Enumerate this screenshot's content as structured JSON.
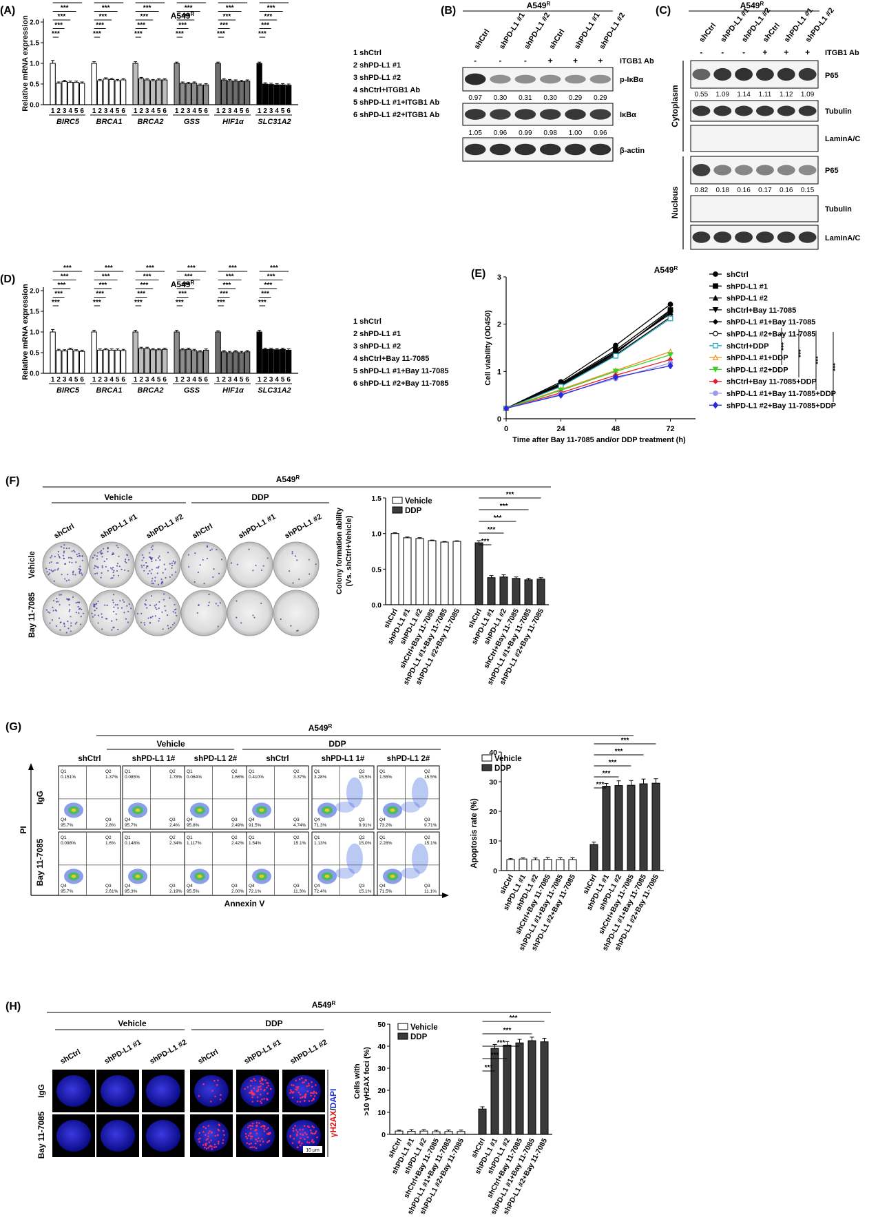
{
  "panels": [
    "(A)",
    "(B)",
    "(C)",
    "(D)",
    "(E)",
    "(F)",
    "(G)",
    "(H)"
  ],
  "cell_line": "A549R",
  "cell_line_base": "A549",
  "cell_line_sup": "R",
  "sig": "***",
  "mrna_genes": [
    "BIRC5",
    "BRCA1",
    "BRCA2",
    "GSS",
    "HIF1α",
    "SLC31A2"
  ],
  "mrna_bar_ticks": [
    "1",
    "2",
    "3",
    "4",
    "5",
    "6"
  ],
  "panel_a": {
    "ylabel": "Relative mRNA expression",
    "yticks": [
      "0.0",
      "0.5",
      "1.0",
      "1.5",
      "2.0"
    ],
    "legend": [
      "1 shCtrl",
      "2 shPD-L1 #1",
      "3 shPD-L1 #2",
      "4 shCtrl+ITGB1 Ab",
      "5 shPD-L1 #1+ITGB1 Ab",
      "6 shPD-L1 #2+ITGB1 Ab"
    ],
    "group_colors": [
      "#ffffff",
      "#ffffff",
      "#bdbdbd",
      "#8c8c8c",
      "#6e6e6e",
      "#000000"
    ]
  },
  "panel_b": {
    "lanes": [
      "shCtrl",
      "shPD-L1 #1",
      "shPD-L1 #2",
      "shCtrl",
      "shPD-L1 #1",
      "shPD-L1 #2"
    ],
    "treat_label": "ITGB1 Ab",
    "treat_signs": [
      "-",
      "-",
      "-",
      "+",
      "+",
      "+"
    ],
    "blots": [
      "p-IκBα",
      "IκBα",
      "β-actin"
    ],
    "quant_p_ikba": [
      "0.97",
      "0.30",
      "0.31",
      "0.30",
      "0.29",
      "0.29"
    ],
    "quant_ikba": [
      "1.05",
      "0.96",
      "0.99",
      "0.98",
      "1.00",
      "0.96"
    ]
  },
  "panel_c": {
    "lanes": [
      "shCtrl",
      "shPD-L1 #1",
      "shPD-L1 #2",
      "shCtrl",
      "shPD-L1 #1",
      "shPD-L1 #2"
    ],
    "treat_label": "ITGB1 Ab",
    "treat_signs": [
      "-",
      "-",
      "-",
      "+",
      "+",
      "+"
    ],
    "sections": [
      "Cytoplasm",
      "Nucleus"
    ],
    "blots": [
      "P65",
      "Tubulin",
      "LaminA/C",
      "P65",
      "Tubulin",
      "LaminA/C"
    ],
    "quant_cyto_p65": [
      "0.55",
      "1.09",
      "1.14",
      "1.11",
      "1.12",
      "1.09"
    ],
    "quant_nuc_p65": [
      "0.82",
      "0.18",
      "0.16",
      "0.17",
      "0.16",
      "0.15"
    ]
  },
  "panel_d": {
    "ylabel": "Relative mRNA expression",
    "yticks": [
      "0.0",
      "0.5",
      "1.0",
      "1.5",
      "2.0"
    ],
    "legend": [
      "1 shCtrl",
      "2 shPD-L1 #1",
      "3 shPD-L1 #2",
      "4 shCtrl+Bay 11-7085",
      "5 shPD-L1 #1+Bay 11-7085",
      "6 shPD-L1 #2+Bay 11-7085"
    ]
  },
  "panel_e": {
    "ylabel": "Cell viability (OD450)",
    "xlabel": "Time after Bay 11-7085 and/or DDP treatment (h)",
    "xticks": [
      "0",
      "24",
      "48",
      "72"
    ],
    "yticks": [
      "0",
      "1",
      "2",
      "3"
    ],
    "legend": [
      "shCtrl",
      "shPD-L1 #1",
      "shPD-L1 #2",
      "shCtrl+Bay 11-7085",
      "shPD-L1 #1+Bay 11-7085",
      "shPD-L1 #2+Bay 11-7085",
      "shCtrl+DDP",
      "shPD-L1 #1+DDP",
      "shPD-L1 #2+DDP",
      "shCtrl+Bay 11-7085+DDP",
      "shPD-L1 #1+Bay 11-7085+DDP",
      "shPD-L1 #2+Bay 11-7085+DDP"
    ],
    "colors": [
      "#000000",
      "#000000",
      "#000000",
      "#000000",
      "#000000",
      "#000000",
      "#1aa3b5",
      "#f0901c",
      "#3ecf28",
      "#e8202a",
      "#9a9ae8",
      "#2a2ad8"
    ],
    "markers": [
      "circle",
      "square",
      "triangle",
      "invtriangle",
      "diamond",
      "opencircle",
      "opensquare",
      "opentriangle",
      "invtriangle",
      "diamond",
      "circle",
      "star"
    ]
  },
  "panel_f": {
    "groups": [
      "Vehicle",
      "DDP"
    ],
    "columns": [
      "shCtrl",
      "shPD-L1 #1",
      "shPD-L1 #2",
      "shCtrl",
      "shPD-L1 #1",
      "shPD-L1 #2"
    ],
    "rows": [
      "Vehicle",
      "Bay 11-7085"
    ],
    "ylabel1": "Colony formation ability",
    "ylabel2": "(Vs. shCtrl+Vehicle)",
    "yticks": [
      "0.0",
      "0.5",
      "1.0",
      "1.5"
    ],
    "legend": [
      "Vehicle",
      "DDP"
    ]
  },
  "panel_g": {
    "groups": [
      "Vehicle",
      "DDP"
    ],
    "columns": [
      "shCtrl",
      "shPD-L1 1#",
      "shPD-L1 2#",
      "shCtrl",
      "shPD-L1 1#",
      "shPD-L1 2#"
    ],
    "rows": [
      "IgG",
      "Bay 11-7085"
    ],
    "axis_y": "PI",
    "axis_x": "Annexin V",
    "quads": [
      [
        "0.151%",
        "1.37%",
        "95.7%",
        "2.8%"
      ],
      [
        "0.085%",
        "1.78%",
        "95.7%",
        "2.4%"
      ],
      [
        "0.064%",
        "1.66%",
        "95.8%",
        "2.49%"
      ],
      [
        "0.410%",
        "3.37%",
        "91.5%",
        "4.74%"
      ],
      [
        "3.28%",
        "15.5%",
        "71.3%",
        "9.91%"
      ],
      [
        "1.55%",
        "15.5%",
        "73.2%",
        "9.71%"
      ],
      [
        "0.098%",
        "1.6%",
        "95.7%",
        "2.61%"
      ],
      [
        "0.148%",
        "2.34%",
        "95.3%",
        "2.19%"
      ],
      [
        "1.117%",
        "2.42%",
        "95.5%",
        "2.00%"
      ],
      [
        "1.54%",
        "15.1%",
        "72.1%",
        "11.3%"
      ],
      [
        "1.13%",
        "15.0%",
        "72.4%",
        "15.1%"
      ],
      [
        "2.28%",
        "15.1%",
        "71.5%",
        "11.1%"
      ]
    ],
    "ylabel": "Apoptosis rate (%)",
    "yticks": [
      "0",
      "10",
      "20",
      "30",
      "40"
    ],
    "legend": [
      "Vehicle",
      "DDP"
    ]
  },
  "panel_h": {
    "groups": [
      "Vehicle",
      "DDP"
    ],
    "columns": [
      "shCtrl",
      "shPD-L1 #1",
      "shPD-L1 #2",
      "shCtrl",
      "shPD-L1 #1",
      "shPD-L1 #2"
    ],
    "rows": [
      "IgG",
      "Bay 11-7085"
    ],
    "stain_red": "γH2AX",
    "stain_sep": "/",
    "stain_blue": "DAPI",
    "scale": "10 μm",
    "ylabel1": "Cells with",
    "ylabel2": ">10 γH2AX foci (%)",
    "yticks": [
      "0",
      "10",
      "20",
      "30",
      "40",
      "50"
    ],
    "legend": [
      "Vehicle",
      "DDP"
    ]
  },
  "bar_group_labels": [
    "shCtrl",
    "shPD-L1 #1",
    "shPD-L1 #2",
    "shCtrl+Bay 11-7085",
    "shPD-L1 #1+Bay 11-7085",
    "shPD-L1 #2+Bay 11-7085"
  ],
  "chart_data": [
    {
      "type": "bar",
      "panel": "(A)",
      "categories": [
        "BIRC5",
        "BRCA1",
        "BRCA2",
        "GSS",
        "HIF1α",
        "SLC31A2"
      ],
      "series": [
        {
          "name": "1 shCtrl",
          "values": [
            1.0,
            1.0,
            1.0,
            1.0,
            1.0,
            1.0
          ]
        },
        {
          "name": "2 shPD-L1 #1",
          "values": [
            0.52,
            0.58,
            0.63,
            0.52,
            0.6,
            0.5
          ]
        },
        {
          "name": "3 shPD-L1 #2",
          "values": [
            0.56,
            0.62,
            0.6,
            0.51,
            0.58,
            0.49
          ]
        },
        {
          "name": "4 shCtrl+ITGB1 Ab",
          "values": [
            0.54,
            0.61,
            0.58,
            0.52,
            0.57,
            0.48
          ]
        },
        {
          "name": "5 shPD-L1 #1+ITGB1 Ab",
          "values": [
            0.54,
            0.58,
            0.6,
            0.47,
            0.56,
            0.48
          ]
        },
        {
          "name": "6 shPD-L1 #2+ITGB1 Ab",
          "values": [
            0.52,
            0.6,
            0.6,
            0.48,
            0.57,
            0.47
          ]
        }
      ],
      "errors": [
        0.07,
        0.04,
        0.04,
        0.03,
        0.03,
        0.03
      ],
      "ylabel": "Relative mRNA expression",
      "ylim": [
        0,
        2
      ]
    },
    {
      "type": "bar",
      "panel": "(D)",
      "categories": [
        "BIRC5",
        "BRCA1",
        "BRCA2",
        "GSS",
        "HIF1α",
        "SLC31A2"
      ],
      "series": [
        {
          "name": "1 shCtrl",
          "values": [
            1.0,
            1.0,
            1.0,
            1.0,
            1.0,
            1.0
          ]
        },
        {
          "name": "2 shPD-L1 #1",
          "values": [
            0.55,
            0.56,
            0.6,
            0.57,
            0.52,
            0.58
          ]
        },
        {
          "name": "3 shPD-L1 #2",
          "values": [
            0.54,
            0.57,
            0.6,
            0.58,
            0.5,
            0.58
          ]
        },
        {
          "name": "4 shCtrl+Bay 11-7085",
          "values": [
            0.58,
            0.56,
            0.57,
            0.55,
            0.52,
            0.57
          ]
        },
        {
          "name": "5 shPD-L1 #1+Bay 11-7085",
          "values": [
            0.54,
            0.56,
            0.57,
            0.52,
            0.5,
            0.58
          ]
        },
        {
          "name": "6 shPD-L1 #2+Bay 11-7085",
          "values": [
            0.53,
            0.55,
            0.58,
            0.56,
            0.52,
            0.56
          ]
        }
      ],
      "errors": [
        0.06,
        0.04,
        0.04,
        0.04,
        0.03,
        0.04
      ],
      "ylabel": "Relative mRNA expression",
      "ylim": [
        0,
        2
      ]
    },
    {
      "type": "line",
      "panel": "(E)",
      "x": [
        0,
        24,
        48,
        72
      ],
      "series": [
        {
          "name": "shCtrl",
          "values": [
            0.22,
            0.78,
            1.55,
            2.42
          ]
        },
        {
          "name": "shPD-L1 #1",
          "values": [
            0.22,
            0.75,
            1.45,
            2.3
          ]
        },
        {
          "name": "shPD-L1 #2",
          "values": [
            0.22,
            0.72,
            1.4,
            2.25
          ]
        },
        {
          "name": "shCtrl+Bay 11-7085",
          "values": [
            0.22,
            0.73,
            1.42,
            2.22
          ]
        },
        {
          "name": "shPD-L1 #1+Bay 11-7085",
          "values": [
            0.22,
            0.7,
            1.38,
            2.28
          ]
        },
        {
          "name": "shPD-L1 #2+Bay 11-7085",
          "values": [
            0.22,
            0.7,
            1.35,
            2.15
          ]
        },
        {
          "name": "shCtrl+DDP",
          "values": [
            0.22,
            0.68,
            1.33,
            2.12
          ]
        },
        {
          "name": "shPD-L1 #1+DDP",
          "values": [
            0.22,
            0.62,
            1.02,
            1.42
          ]
        },
        {
          "name": "shPD-L1 #2+DDP",
          "values": [
            0.22,
            0.6,
            1.0,
            1.35
          ]
        },
        {
          "name": "shCtrl+Bay 11-7085+DDP",
          "values": [
            0.22,
            0.55,
            0.92,
            1.25
          ]
        },
        {
          "name": "shPD-L1 #1+Bay 11-7085+DDP",
          "values": [
            0.22,
            0.52,
            0.85,
            1.18
          ]
        },
        {
          "name": "shPD-L1 #2+Bay 11-7085+DDP",
          "values": [
            0.22,
            0.5,
            0.88,
            1.12
          ]
        }
      ],
      "xlabel": "Time after Bay 11-7085 and/or DDP treatment (h)",
      "ylabel": "Cell viability (OD450)",
      "xlim": [
        0,
        80
      ],
      "ylim": [
        0,
        3
      ]
    },
    {
      "type": "bar",
      "panel": "(F)",
      "categories": [
        "shCtrl",
        "shPD-L1 #1",
        "shPD-L1 #2",
        "shCtrl+Bay 11-7085",
        "shPD-L1 #1+Bay 11-7085",
        "shPD-L1 #2+Bay 11-7085"
      ],
      "series": [
        {
          "name": "Vehicle",
          "values": [
            1.0,
            0.94,
            0.93,
            0.9,
            0.88,
            0.89
          ]
        },
        {
          "name": "DDP",
          "values": [
            0.87,
            0.38,
            0.39,
            0.37,
            0.35,
            0.36
          ]
        }
      ],
      "errors": [
        0.03,
        0.03,
        0.03,
        0.02,
        0.02,
        0.02
      ],
      "ylabel": "Colony formation ability (Vs. shCtrl+Vehicle)",
      "ylim": [
        0,
        1.5
      ]
    },
    {
      "type": "bar",
      "panel": "(G)",
      "categories": [
        "shCtrl",
        "shPD-L1 #1",
        "shPD-L1 #2",
        "shCtrl+Bay 11-7085",
        "shPD-L1 #1+Bay 11-7085",
        "shPD-L1 #2+Bay 11-7085"
      ],
      "series": [
        {
          "name": "Vehicle",
          "values": [
            3.7,
            3.9,
            3.6,
            3.8,
            3.7,
            3.7
          ]
        },
        {
          "name": "DDP",
          "values": [
            8.8,
            28.5,
            28.7,
            28.8,
            29.3,
            29.5
          ]
        }
      ],
      "errors": [
        0.8,
        0.9,
        1.6,
        1.6,
        1.6,
        1.5
      ],
      "ylabel": "Apoptosis rate (%)",
      "ylim": [
        0,
        40
      ]
    },
    {
      "type": "bar",
      "panel": "(H)",
      "categories": [
        "shCtrl",
        "shPD-L1 #1",
        "shPD-L1 #2",
        "shCtrl+Bay 11-7085",
        "shPD-L1 #1+Bay 11-7085",
        "shPD-L1 #2+Bay 11-7085"
      ],
      "series": [
        {
          "name": "Vehicle",
          "values": [
            1.5,
            1.4,
            1.5,
            1.2,
            1.3,
            1.3
          ]
        },
        {
          "name": "DDP",
          "values": [
            11.5,
            39.0,
            40.5,
            41.5,
            42.5,
            42.0
          ]
        }
      ],
      "errors": [
        1.0,
        1.8,
        1.6,
        1.6,
        1.6,
        1.6
      ],
      "ylabel": "Cells with >10 γH2AX foci (%)",
      "ylim": [
        0,
        50
      ]
    }
  ]
}
